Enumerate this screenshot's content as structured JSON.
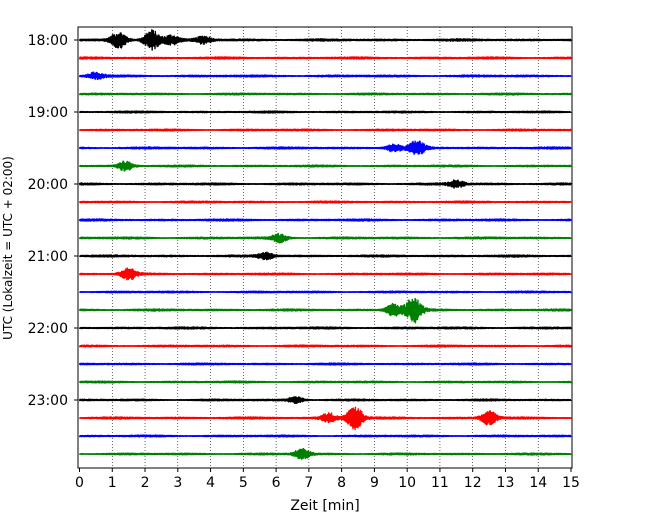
{
  "chart_data": {
    "type": "line",
    "title": "",
    "xlabel": "Zeit  [min]",
    "ylabel": "UTC (Lokalzeit = UTC + 02:00)",
    "xlim": [
      0,
      15
    ],
    "x_ticks": [
      "0",
      "1",
      "2",
      "3",
      "4",
      "5",
      "6",
      "7",
      "8",
      "9",
      "10",
      "11",
      "12",
      "13",
      "14",
      "15"
    ],
    "y_tick_labels": [
      "18:00",
      "19:00",
      "20:00",
      "21:00",
      "22:00",
      "23:00"
    ],
    "grid": "vertical dotted",
    "trace_start_time": "18:00",
    "trace_interval_min": 15,
    "trace_colors": [
      "#000000",
      "#ff0000",
      "#0000ff",
      "#008000"
    ],
    "traces": [
      {
        "start": "18:00",
        "color": "#000000",
        "amplitude": 0.5,
        "events": [
          {
            "minute": 1.2,
            "strength": 1.3
          },
          {
            "minute": 2.2,
            "strength": 1.7
          },
          {
            "minute": 2.8,
            "strength": 0.8
          },
          {
            "minute": 3.8,
            "strength": 0.6
          }
        ]
      },
      {
        "start": "18:15",
        "color": "#ff0000",
        "amplitude": 0.45,
        "events": []
      },
      {
        "start": "18:30",
        "color": "#0000ff",
        "amplitude": 0.45,
        "events": [
          {
            "minute": 0.5,
            "strength": 0.6
          }
        ]
      },
      {
        "start": "18:45",
        "color": "#008000",
        "amplitude": 0.4,
        "events": []
      },
      {
        "start": "19:00",
        "color": "#000000",
        "amplitude": 0.4,
        "events": []
      },
      {
        "start": "19:15",
        "color": "#ff0000",
        "amplitude": 0.4,
        "events": []
      },
      {
        "start": "19:30",
        "color": "#0000ff",
        "amplitude": 0.45,
        "events": [
          {
            "minute": 10.3,
            "strength": 1.2
          },
          {
            "minute": 9.6,
            "strength": 0.6
          }
        ]
      },
      {
        "start": "19:45",
        "color": "#008000",
        "amplitude": 0.4,
        "events": [
          {
            "minute": 1.4,
            "strength": 0.8
          }
        ]
      },
      {
        "start": "20:00",
        "color": "#000000",
        "amplitude": 0.45,
        "events": [
          {
            "minute": 11.5,
            "strength": 0.6
          }
        ]
      },
      {
        "start": "20:15",
        "color": "#ff0000",
        "amplitude": 0.4,
        "events": []
      },
      {
        "start": "20:30",
        "color": "#0000ff",
        "amplitude": 0.45,
        "events": []
      },
      {
        "start": "20:45",
        "color": "#008000",
        "amplitude": 0.45,
        "events": [
          {
            "minute": 6.1,
            "strength": 0.7
          }
        ]
      },
      {
        "start": "21:00",
        "color": "#000000",
        "amplitude": 0.45,
        "events": [
          {
            "minute": 5.7,
            "strength": 0.6
          }
        ]
      },
      {
        "start": "21:15",
        "color": "#ff0000",
        "amplitude": 0.4,
        "events": [
          {
            "minute": 1.5,
            "strength": 0.9
          }
        ]
      },
      {
        "start": "21:30",
        "color": "#0000ff",
        "amplitude": 0.4,
        "events": []
      },
      {
        "start": "21:45",
        "color": "#008000",
        "amplitude": 0.45,
        "events": [
          {
            "minute": 10.2,
            "strength": 2.2
          },
          {
            "minute": 9.6,
            "strength": 1.1
          }
        ]
      },
      {
        "start": "22:00",
        "color": "#000000",
        "amplitude": 0.45,
        "events": []
      },
      {
        "start": "22:15",
        "color": "#ff0000",
        "amplitude": 0.4,
        "events": []
      },
      {
        "start": "22:30",
        "color": "#0000ff",
        "amplitude": 0.4,
        "events": []
      },
      {
        "start": "22:45",
        "color": "#008000",
        "amplitude": 0.4,
        "events": []
      },
      {
        "start": "23:00",
        "color": "#000000",
        "amplitude": 0.4,
        "events": [
          {
            "minute": 6.6,
            "strength": 0.5
          }
        ]
      },
      {
        "start": "23:15",
        "color": "#ff0000",
        "amplitude": 0.45,
        "events": [
          {
            "minute": 8.4,
            "strength": 2.0
          },
          {
            "minute": 12.5,
            "strength": 1.2
          },
          {
            "minute": 7.6,
            "strength": 0.8
          }
        ]
      },
      {
        "start": "23:30",
        "color": "#0000ff",
        "amplitude": 0.4,
        "events": []
      },
      {
        "start": "23:45",
        "color": "#008000",
        "amplitude": 0.4,
        "events": [
          {
            "minute": 6.8,
            "strength": 0.9
          }
        ]
      }
    ]
  }
}
